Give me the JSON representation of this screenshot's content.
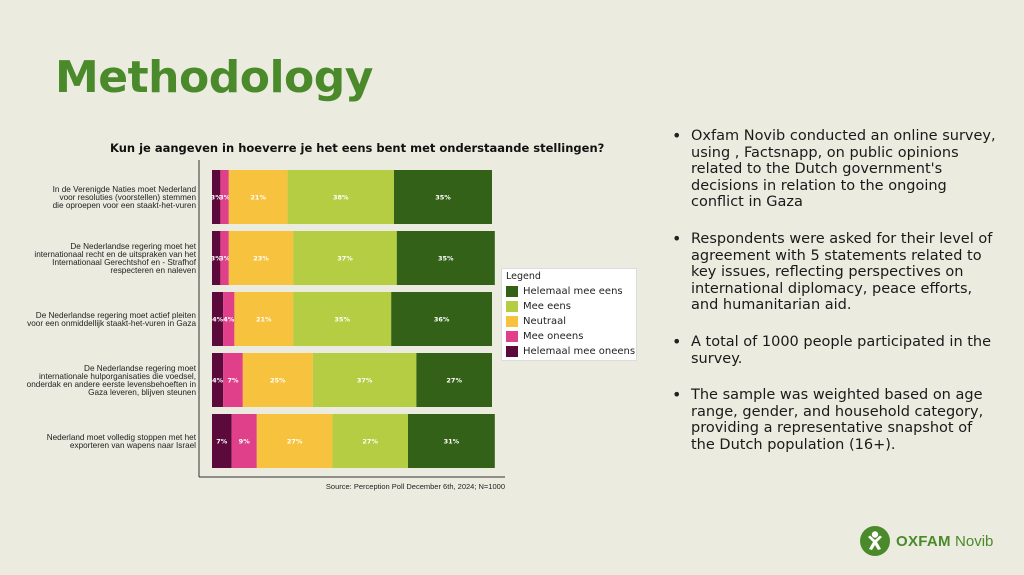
{
  "slide": {
    "title": "Methodology"
  },
  "chart_data": {
    "type": "bar",
    "orientation": "horizontal",
    "stacked": true,
    "title": "Kun je aangeven in hoeverre je het eens bent met onderstaande stellingen?",
    "categories": [
      "In de Verenigde Naties moet Nederland voor resoluties (voorstellen) stemmen die oproepen voor een staakt-het-vuren",
      "De Nederlandse regering moet het internationaal recht en de uitspraken van het Internationaal Gerechtshof en - Strafhof respecteren en naleven",
      "De Nederlandse regering moet actief pleiten voor een onmiddellijk staakt-het-vuren in Gaza",
      "De Nederlandse regering moet internationale hulporganisaties die voedsel, onderdak en andere eerste levensbehoeften in Gaza leveren, blijven steunen",
      "Nederland moet volledig stoppen met het exporteren van wapens naar Israel"
    ],
    "category_lines": [
      [
        "In de Verenigde Naties moet Nederland",
        "voor resoluties (voorstellen) stemmen",
        "die oproepen voor een staakt-het-vuren"
      ],
      [
        "De Nederlandse regering moet het",
        "internationaal recht en de uitspraken van het",
        "Internationaal Gerechtshof en - Strafhof",
        "respecteren en naleven"
      ],
      [
        "De Nederlandse regering moet actief pleiten",
        "voor een onmiddellijk staakt-het-vuren in Gaza"
      ],
      [
        "De Nederlandse regering moet",
        "internationale hulporganisaties die voedsel,",
        "onderdak en andere eerste levensbehoeften in",
        "Gaza leveren, blijven steunen"
      ],
      [
        "Nederland moet volledig stoppen met het",
        "exporteren van wapens naar Israel"
      ]
    ],
    "series": [
      {
        "name": "Helemaal mee oneens",
        "color": "#5c0a3c",
        "values": [
          3,
          3,
          4,
          4,
          7
        ]
      },
      {
        "name": "Mee oneens",
        "color": "#e0408a",
        "values": [
          3,
          3,
          4,
          7,
          9
        ]
      },
      {
        "name": "Neutraal",
        "color": "#f7c23e",
        "values": [
          21,
          23,
          21,
          25,
          27
        ]
      },
      {
        "name": "Mee eens",
        "color": "#b5cd42",
        "values": [
          38,
          37,
          35,
          37,
          27
        ]
      },
      {
        "name": "Helemaal mee eens",
        "color": "#336117",
        "values": [
          35,
          35,
          36,
          27,
          31
        ]
      }
    ],
    "value_suffix": "%",
    "xlim": [
      0,
      100
    ],
    "legend": {
      "title": "Legend",
      "placement": "right",
      "order": [
        "Helemaal mee eens",
        "Mee eens",
        "Neutraal",
        "Mee oneens",
        "Helemaal mee oneens"
      ]
    },
    "source": "Source: Perception Poll December 6th, 2024; N=1000"
  },
  "bullets": [
    "Oxfam Novib conducted an online survey, using , Factsnapp, on public opinions related to the Dutch government's decisions in relation to the ongoing conflict in Gaza",
    "Respondents were asked for their level of agreement with 5 statements related to key issues, reflecting perspectives on international diplomacy, peace efforts, and humanitarian aid.",
    "A total of 1000 people participated in the survey.",
    "The sample was weighted based on age range, gender, and household category, providing a representative snapshot of the Dutch population (16+)."
  ],
  "bullet_lines": [
    [
      "Oxfam Novib conducted an online survey,",
      "using , Factsnapp, on public opinions",
      "related to the Dutch government's",
      "decisions in relation to the ongoing",
      "conflict in Gaza"
    ],
    [
      "Respondents were asked for their level of",
      "agreement with 5 statements related to",
      "key issues, reflecting perspectives on",
      "international diplomacy, peace efforts,",
      "and humanitarian aid."
    ],
    [
      "A total of 1000 people participated in the",
      "survey."
    ],
    [
      "The sample was weighted based on age",
      "range, gender, and household category,",
      "providing a representative snapshot of",
      "the Dutch population (16+)."
    ]
  ],
  "logo": {
    "brand": "OXFAM",
    "sub": "Novib",
    "color": "#4a8a2a"
  }
}
